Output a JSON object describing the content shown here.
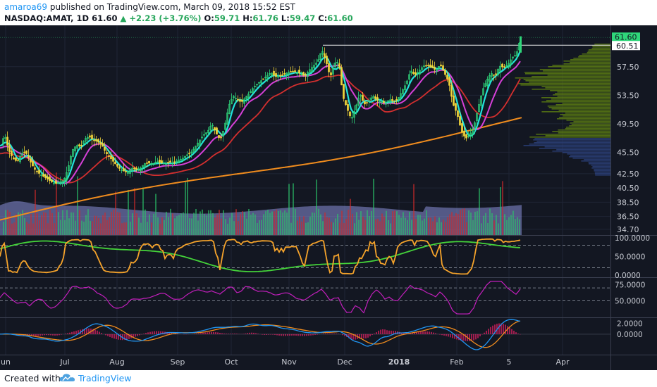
{
  "header": {
    "author": "amaroa69",
    "published_text": "published on TradingView.com, March 09, 2018 15:52 EST",
    "symbol": "NASDAQ:AMAT, 1D",
    "last": "61.60",
    "change": "+2.23 (+3.76%)",
    "o_label": "O:",
    "o_value": "59.71",
    "h_label": "H:",
    "h_value": "61.76",
    "l_label": "L:",
    "l_value": "59.47",
    "c_label": "C:",
    "c_value": "61.60"
  },
  "footer": {
    "created_with": "Created with",
    "brand": "TradingView"
  },
  "colors": {
    "background": "#131722",
    "candle_up": "#2fd67a",
    "candle_down": "#f0d43a",
    "ema_fast": "#22e4dc",
    "ema_slow": "#d640d8",
    "sma_mid": "#d32f2f",
    "sma_long": "#f08c1e",
    "volume_profile": "#5a7a12",
    "volume_ma": "#8a8fd8",
    "stoch_k": "#f5a32b",
    "stoch_d": "#44d33a",
    "rsi": "#c21fbc",
    "macd": "#2196f3",
    "macd_signal": "#f08c1e",
    "macd_hist": "#ff1f6b"
  },
  "chart_data": {
    "type": "candlestick",
    "price_axis_ticks": [
      "57.50",
      "53.50",
      "49.50",
      "45.50",
      "42.50",
      "40.50",
      "38.50",
      "36.50",
      "34.70"
    ],
    "price_labels": {
      "last": "61.60",
      "line": "60.51"
    },
    "x_ticks": [
      "un",
      "Jul",
      "Aug",
      "Sep",
      "Oct",
      "Nov",
      "Dec",
      "2018",
      "Feb",
      "5",
      "Apr"
    ],
    "price_range": [
      33.9,
      63.1
    ],
    "price_trace": [
      [
        0,
        46.5
      ],
      [
        6,
        47.9
      ],
      [
        12,
        45.8
      ],
      [
        18,
        44.6
      ],
      [
        24,
        44.2
      ],
      [
        30,
        45.3
      ],
      [
        36,
        45.5
      ],
      [
        42,
        44.3
      ],
      [
        48,
        43.2
      ],
      [
        54,
        42.6
      ],
      [
        60,
        42.2
      ],
      [
        66,
        41.8
      ],
      [
        72,
        41.4
      ],
      [
        78,
        41.1
      ],
      [
        84,
        41.3
      ],
      [
        90,
        41.6
      ],
      [
        96,
        43.2
      ],
      [
        102,
        45.8
      ],
      [
        108,
        46.5
      ],
      [
        114,
        46.3
      ],
      [
        120,
        47.4
      ],
      [
        126,
        47.7
      ],
      [
        132,
        47.2
      ],
      [
        138,
        47.0
      ],
      [
        144,
        46.5
      ],
      [
        150,
        45.4
      ],
      [
        156,
        44.7
      ],
      [
        162,
        44.0
      ],
      [
        168,
        43.3
      ],
      [
        174,
        42.9
      ],
      [
        180,
        42.7
      ],
      [
        186,
        43.3
      ],
      [
        192,
        43.1
      ],
      [
        198,
        43.2
      ],
      [
        204,
        43.9
      ],
      [
        210,
        44.0
      ],
      [
        216,
        43.9
      ],
      [
        222,
        44.2
      ],
      [
        228,
        44.0
      ],
      [
        234,
        44.0
      ],
      [
        240,
        44.1
      ],
      [
        246,
        44.0
      ],
      [
        252,
        44.4
      ],
      [
        258,
        44.6
      ],
      [
        264,
        45.1
      ],
      [
        270,
        45.4
      ],
      [
        276,
        46.2
      ],
      [
        282,
        47.1
      ],
      [
        288,
        47.9
      ],
      [
        294,
        48.4
      ],
      [
        300,
        49.5
      ],
      [
        306,
        48.2
      ],
      [
        312,
        47.2
      ],
      [
        318,
        49.1
      ],
      [
        324,
        52.0
      ],
      [
        330,
        53.4
      ],
      [
        336,
        52.9
      ],
      [
        342,
        52.5
      ],
      [
        348,
        53.2
      ],
      [
        354,
        53.9
      ],
      [
        360,
        54.7
      ],
      [
        366,
        55.2
      ],
      [
        372,
        55.7
      ],
      [
        378,
        56.2
      ],
      [
        384,
        56.7
      ],
      [
        390,
        56.1
      ],
      [
        396,
        56.2
      ],
      [
        402,
        56.4
      ],
      [
        408,
        56.7
      ],
      [
        414,
        56.8
      ],
      [
        420,
        56.8
      ],
      [
        426,
        56.5
      ],
      [
        432,
        56.2
      ],
      [
        438,
        57.0
      ],
      [
        444,
        57.6
      ],
      [
        450,
        58.2
      ],
      [
        456,
        59.9
      ],
      [
        462,
        58.3
      ],
      [
        468,
        56.0
      ],
      [
        474,
        58.0
      ],
      [
        480,
        58.2
      ],
      [
        486,
        53.3
      ],
      [
        492,
        51.6
      ],
      [
        498,
        50.1
      ],
      [
        504,
        51.8
      ],
      [
        510,
        53.8
      ],
      [
        516,
        52.2
      ],
      [
        522,
        52.6
      ],
      [
        528,
        53.4
      ],
      [
        534,
        52.8
      ],
      [
        540,
        52.6
      ],
      [
        546,
        52.4
      ],
      [
        552,
        52.9
      ],
      [
        558,
        52.6
      ],
      [
        564,
        53.0
      ],
      [
        570,
        54.1
      ],
      [
        576,
        55.2
      ],
      [
        582,
        57.0
      ],
      [
        588,
        56.3
      ],
      [
        594,
        56.9
      ],
      [
        600,
        57.6
      ],
      [
        606,
        57.7
      ],
      [
        612,
        57.4
      ],
      [
        618,
        57.0
      ],
      [
        624,
        57.8
      ],
      [
        630,
        56.6
      ],
      [
        636,
        55.4
      ],
      [
        642,
        52.3
      ],
      [
        648,
        50.9
      ],
      [
        654,
        48.5
      ],
      [
        660,
        47.4
      ],
      [
        666,
        48.0
      ],
      [
        672,
        49.2
      ],
      [
        678,
        51.8
      ],
      [
        684,
        54.2
      ],
      [
        690,
        55.6
      ],
      [
        696,
        56.6
      ],
      [
        702,
        56.2
      ],
      [
        708,
        57.6
      ],
      [
        714,
        57.4
      ],
      [
        720,
        57.8
      ],
      [
        726,
        58.8
      ],
      [
        732,
        59.2
      ],
      [
        738,
        61.6
      ]
    ],
    "stoch_ticks": [
      "100.0000",
      "50.0000",
      "0.0000"
    ],
    "rsi_ticks": [
      "75.0000",
      "50.0000"
    ],
    "macd_ticks": [
      "2.0000",
      "0.0000"
    ]
  }
}
